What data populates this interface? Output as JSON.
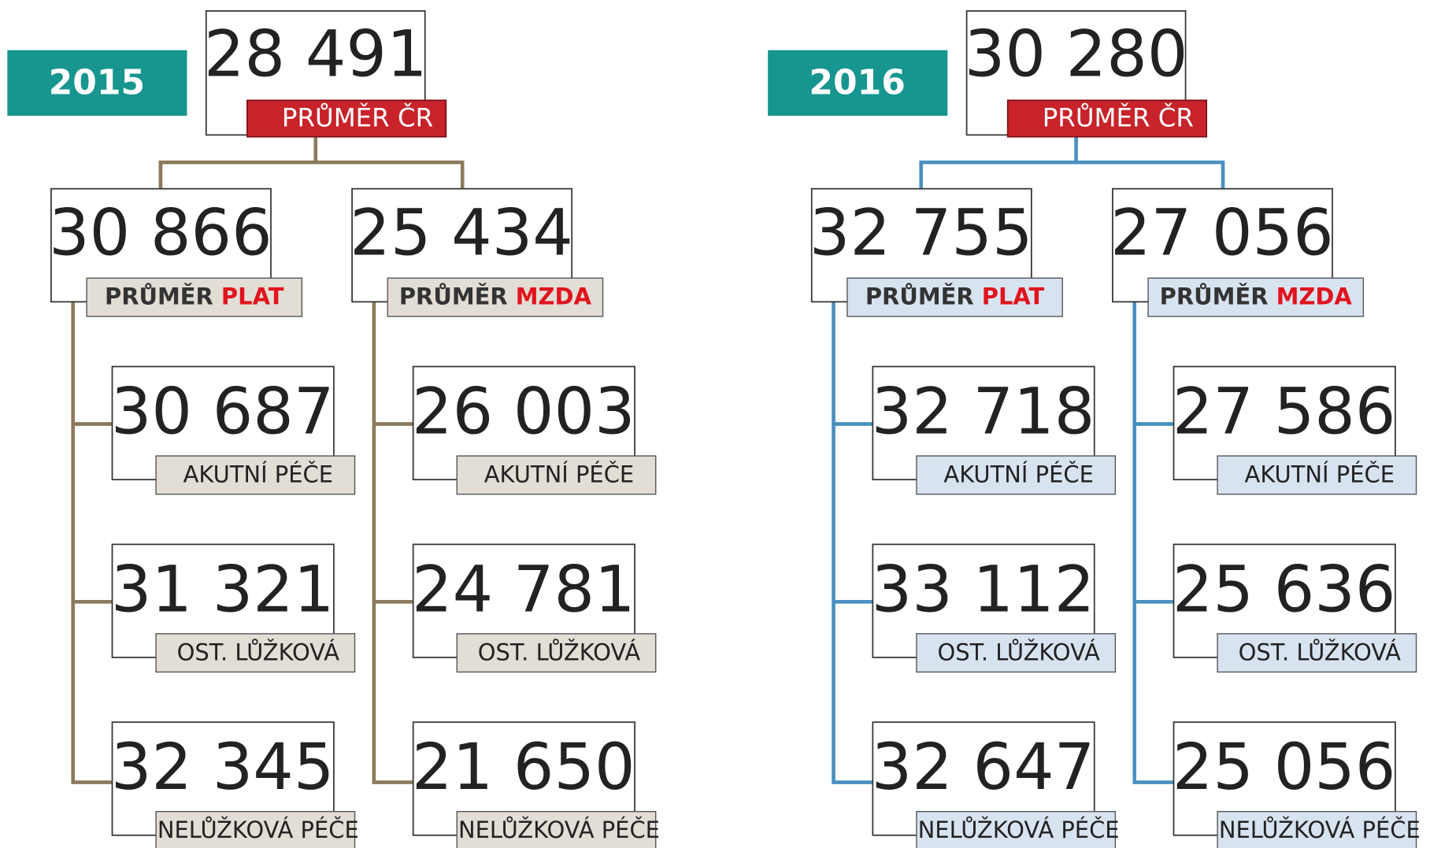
{
  "panels": [
    {
      "year": "2015",
      "total": {
        "value": "28 491",
        "label": "PRŮMĚR ČR"
      },
      "groups": [
        {
          "value": "30 866",
          "label": "PRŮMĚR",
          "highlight": "PLAT",
          "children": [
            {
              "value": "30 687",
              "label": "AKUTNÍ PÉČE"
            },
            {
              "value": "31 321",
              "label": "OST. LŮŽKOVÁ"
            },
            {
              "value": "32 345",
              "label": "NELŮŽKOVÁ PÉČE"
            }
          ]
        },
        {
          "value": "25 434",
          "label": "PRŮMĚR",
          "highlight": "MZDA",
          "children": [
            {
              "value": "26 003",
              "label": "AKUTNÍ PÉČE"
            },
            {
              "value": "24 781",
              "label": "OST. LŮŽKOVÁ"
            },
            {
              "value": "21 650",
              "label": "NELŮŽKOVÁ PÉČE"
            }
          ]
        }
      ]
    },
    {
      "year": "2016",
      "total": {
        "value": "30 280",
        "label": "PRŮMĚR ČR"
      },
      "groups": [
        {
          "value": "32 755",
          "label": "PRŮMĚR",
          "highlight": "PLAT",
          "children": [
            {
              "value": "32 718",
              "label": "AKUTNÍ PÉČE"
            },
            {
              "value": "33 112",
              "label": "OST. LŮŽKOVÁ"
            },
            {
              "value": "32 647",
              "label": "NELŮŽKOVÁ PÉČE"
            }
          ]
        },
        {
          "value": "27 056",
          "label": "PRŮMĚR",
          "highlight": "MZDA",
          "children": [
            {
              "value": "27 586",
              "label": "AKUTNÍ PÉČE"
            },
            {
              "value": "25 636",
              "label": "OST. LŮŽKOVÁ"
            },
            {
              "value": "25 056",
              "label": "NELŮŽKOVÁ PÉČE"
            }
          ]
        }
      ]
    }
  ]
}
